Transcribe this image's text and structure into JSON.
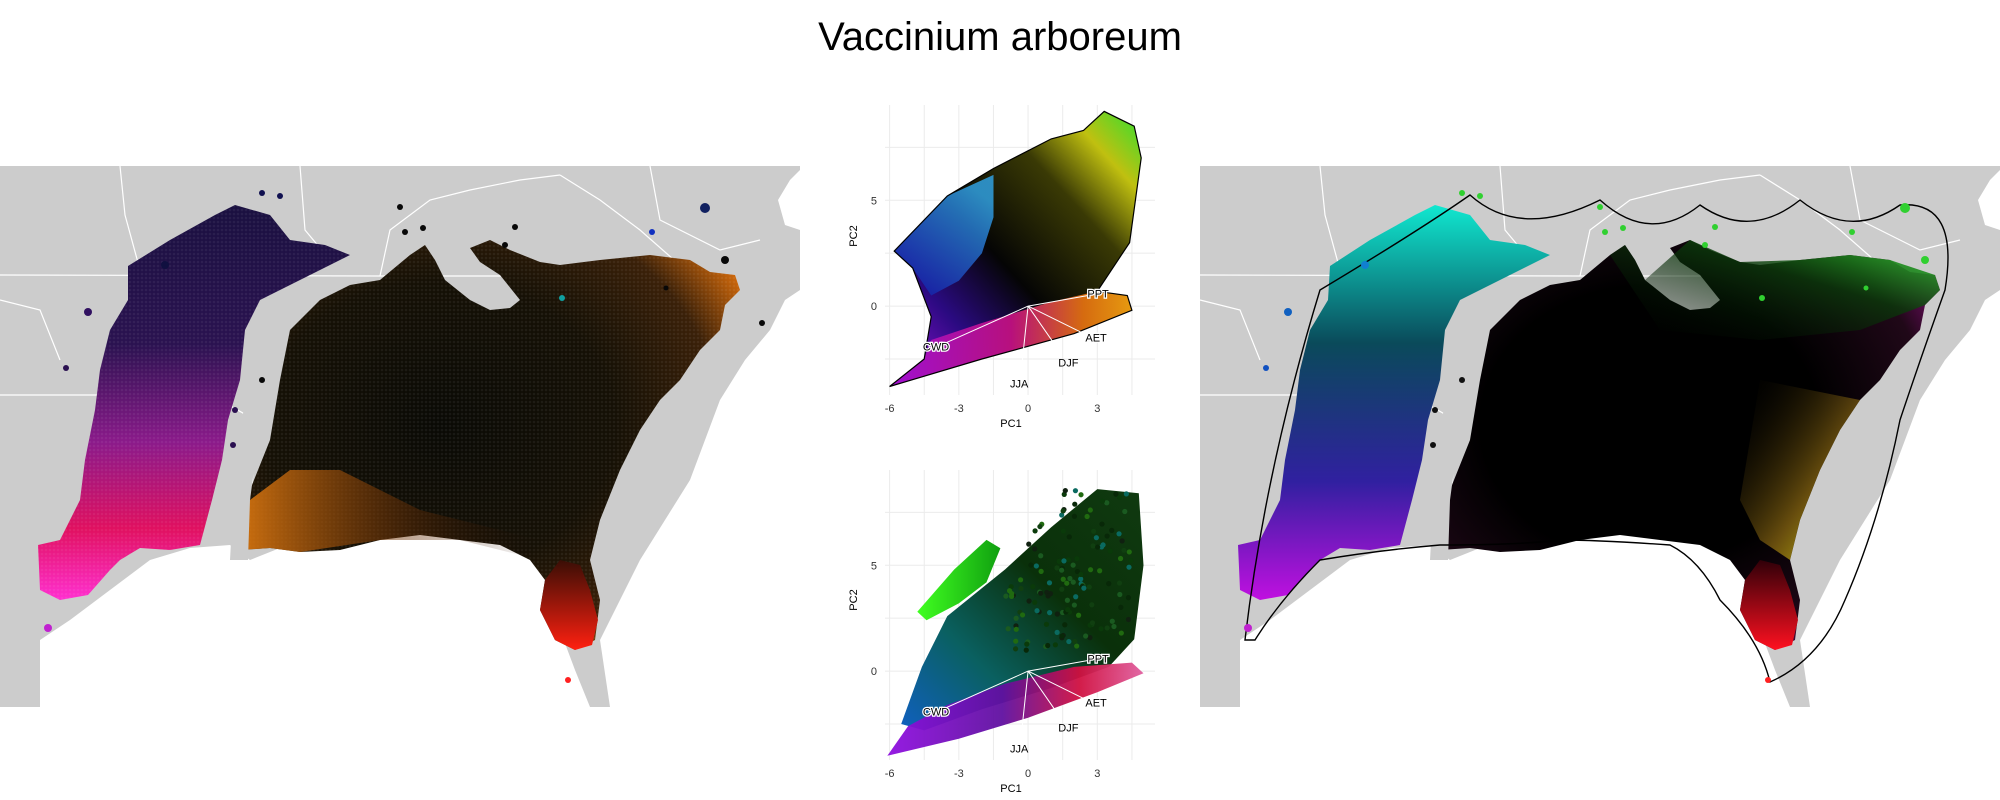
{
  "figure": {
    "title": "Vaccinium arboreum"
  },
  "chart_data": [
    {
      "type": "scatter",
      "panel": "pca-top",
      "xlabel": "PC1",
      "ylabel": "PC2",
      "xticks": [
        "-6",
        "-3",
        "0",
        "3"
      ],
      "yticks": [
        "5",
        "0"
      ],
      "xlim": [
        -6.2,
        5.5
      ],
      "ylim": [
        -4.2,
        9.5
      ],
      "grid": true,
      "loadings": [
        {
          "label": "PPT",
          "x": 2.6,
          "y": 0.5
        },
        {
          "label": "AET",
          "x": 2.6,
          "y": -1.4
        },
        {
          "label": "DJF",
          "x": 1.4,
          "y": -2.2
        },
        {
          "label": "JJA",
          "x": -0.3,
          "y": -3.1
        },
        {
          "label": "CWD",
          "x": -3.9,
          "y": -1.9
        }
      ],
      "description_points": "dense cloud of climate samples forming a convex hull",
      "hull": [
        [
          -6,
          -3.8
        ],
        [
          -2,
          -2.5
        ],
        [
          2,
          -1.3
        ],
        [
          4.5,
          -0.2
        ],
        [
          4.3,
          0.5
        ],
        [
          3,
          0.7
        ],
        [
          4.4,
          3
        ],
        [
          4.9,
          7
        ],
        [
          4.6,
          8.5
        ],
        [
          3.3,
          9.2
        ],
        [
          2.4,
          8.3
        ],
        [
          1,
          7.9
        ],
        [
          -1.5,
          6.5
        ],
        [
          -3.5,
          5.2
        ],
        [
          -5.8,
          2.6
        ],
        [
          -5,
          1.8
        ],
        [
          -4.2,
          -0.5
        ],
        [
          -4.5,
          -2.5
        ]
      ]
    },
    {
      "type": "scatter",
      "panel": "pca-bottom",
      "xlabel": "PC1",
      "ylabel": "PC2",
      "xticks": [
        "-6",
        "-3",
        "0",
        "3"
      ],
      "yticks": [
        "5",
        "0"
      ],
      "xlim": [
        -6.2,
        5.5
      ],
      "ylim": [
        -4.2,
        9.5
      ],
      "grid": true,
      "loadings": [
        {
          "label": "PPT",
          "x": 2.6,
          "y": 0.5
        },
        {
          "label": "AET",
          "x": 2.6,
          "y": -1.4
        },
        {
          "label": "DJF",
          "x": 1.4,
          "y": -2.2
        },
        {
          "label": "JJA",
          "x": -0.3,
          "y": -3.1
        },
        {
          "label": "CWD",
          "x": -3.9,
          "y": -1.9
        }
      ]
    }
  ],
  "maps": {
    "left": {
      "description": "observed range colored by climate PCA"
    },
    "right": {
      "description": "modeled range with convex outline"
    }
  },
  "colors": {
    "land": "#cccccc",
    "background": "#ffffff",
    "state_border": "#ffffff",
    "outline": "#000000"
  }
}
